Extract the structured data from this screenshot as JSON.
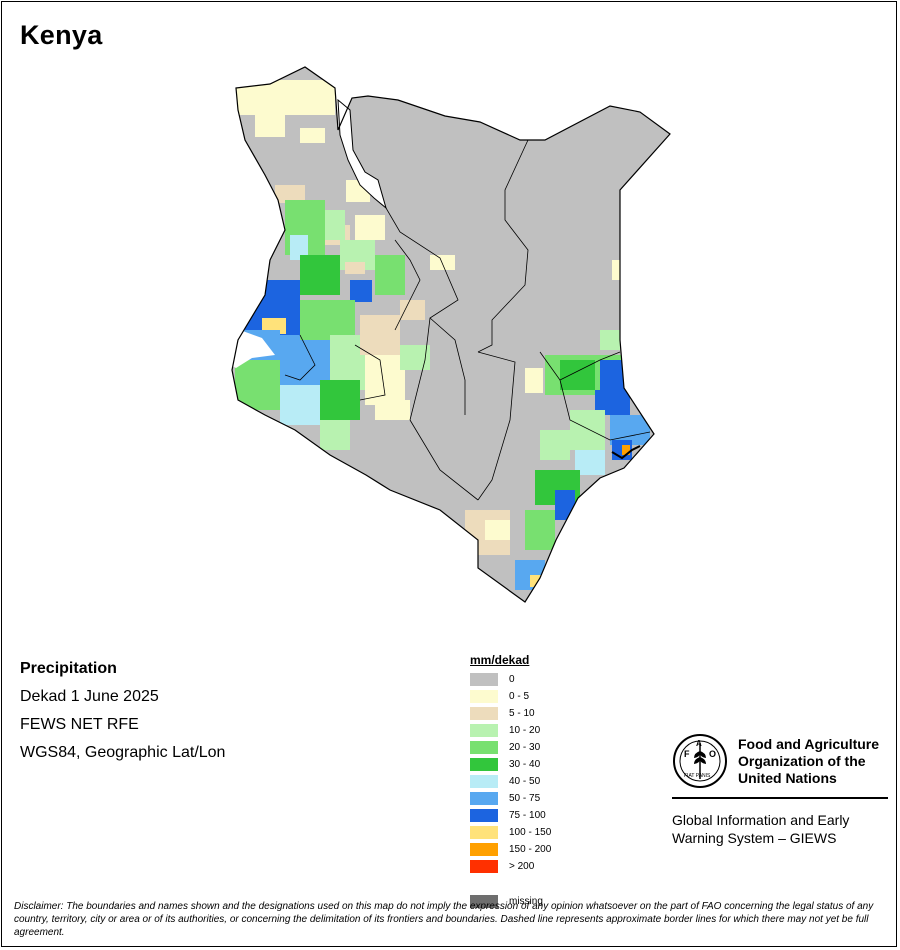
{
  "map": {
    "country": "Kenya",
    "info": {
      "variable": "Precipitation",
      "period": "Dekad 1 June 2025",
      "source": "FEWS NET RFE",
      "projection": "WGS84, Geographic Lat/Lon"
    },
    "legend": {
      "title": "mm/dekad",
      "classes": [
        {
          "label": "0",
          "color": "#c0c0c0"
        },
        {
          "label": "0 - 5",
          "color": "#fdfbcf"
        },
        {
          "label": "5 - 10",
          "color": "#eddcbc"
        },
        {
          "label": "10 - 20",
          "color": "#b8f2b0"
        },
        {
          "label": "20 - 30",
          "color": "#78e070"
        },
        {
          "label": "30 - 40",
          "color": "#32c63c"
        },
        {
          "label": "40 - 50",
          "color": "#b8ecf6"
        },
        {
          "label": "50 - 75",
          "color": "#58a8f0"
        },
        {
          "label": "75 - 100",
          "color": "#1c64e0"
        },
        {
          "label": "100 - 150",
          "color": "#ffe27a"
        },
        {
          "label": "150 - 200",
          "color": "#ffa000"
        },
        {
          "label": "> 200",
          "color": "#ff3000"
        }
      ],
      "missing": {
        "label": "missing",
        "color": "#6e6e6e"
      }
    },
    "organization": {
      "emblem_letters": "FAO",
      "emblem_motto": "FIAT PANIS",
      "name_lines": [
        "Food and Agriculture",
        "Organization of the",
        "United Nations"
      ],
      "system_lines": [
        "Global Information and Early",
        "Warning System – GIEWS"
      ]
    },
    "disclaimer": "Disclaimer: The boundaries and names shown and the designations used on this map do not imply the expression of any opinion whatsoever on the part of FAO concerning the legal status of any country, territory, city or area or of its authorities, or concerning the delimitation of its frontiers and boundaries. Dashed line represents approximate border lines for which there may not yet be full agreement."
  }
}
